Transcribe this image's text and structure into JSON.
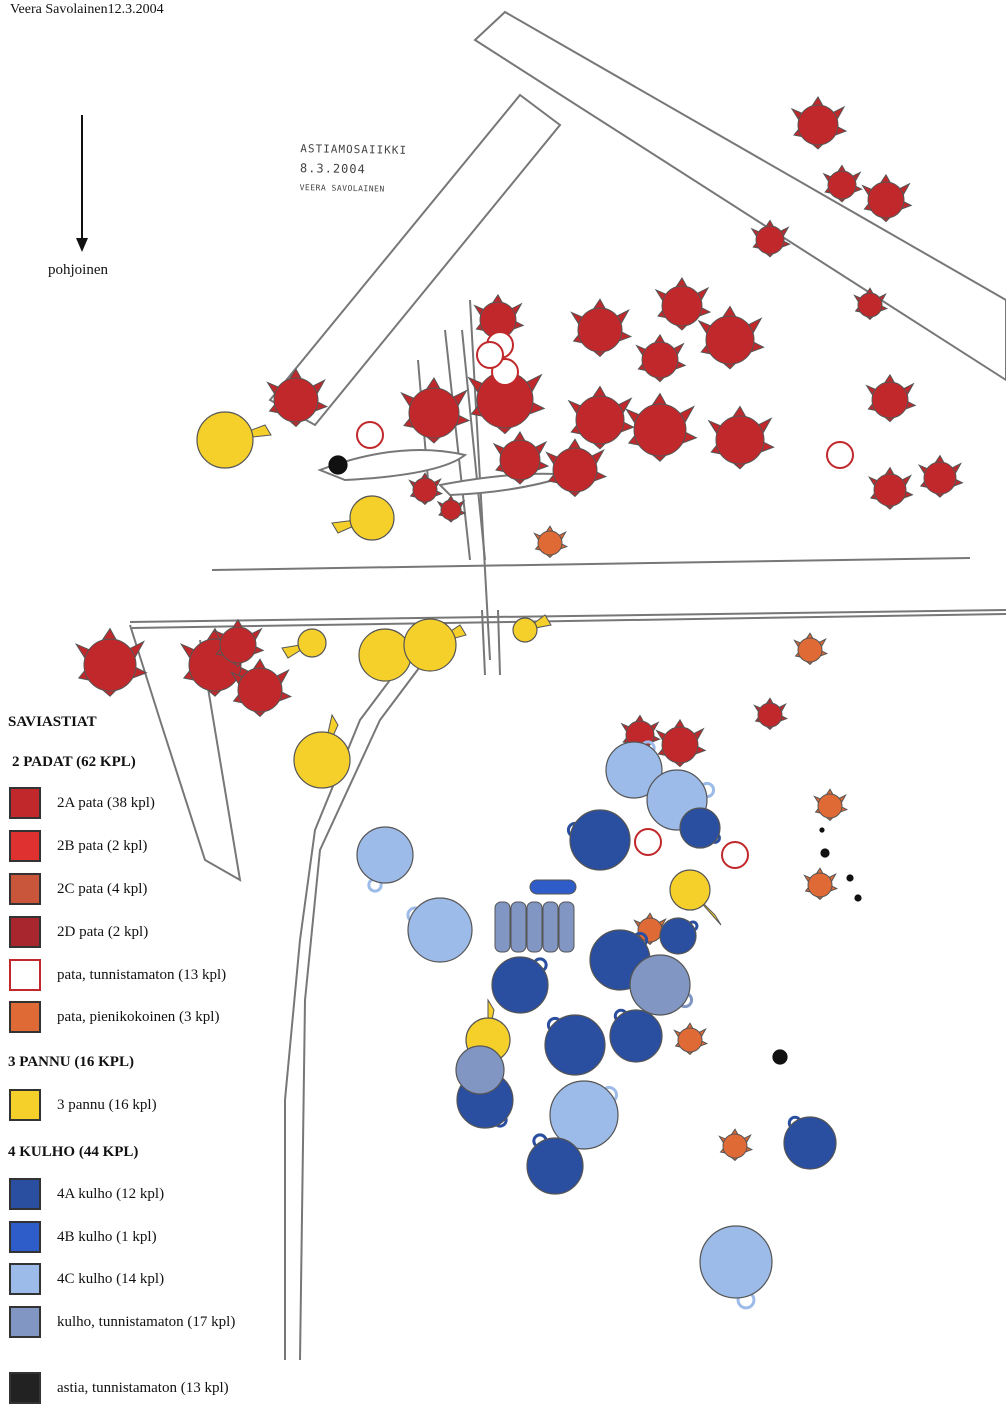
{
  "header": {
    "line2": "Veera Savolainen12.3.2004"
  },
  "north_label": "pohjoinen",
  "handwritten": {
    "line1": "ASTIAMOSAIIKKI",
    "line2": "8.3.2004",
    "line3": "VEERA SAVOLAINEN"
  },
  "legend": {
    "title": "SAVIASTIAT",
    "groups": [
      {
        "heading": "2 PADAT (62 KPL)",
        "items": [
          {
            "label": "2A pata (38 kpl)",
            "color": "#c0282b"
          },
          {
            "label": "2B pata (2 kpl)",
            "color": "#e03131"
          },
          {
            "label": "2C pata (4 kpl)",
            "color": "#c9553a"
          },
          {
            "label": "2D pata (2 kpl)",
            "color": "#a8262e"
          },
          {
            "label": "pata, tunnistamaton (13 kpl)",
            "color": "#ffffff"
          },
          {
            "label": "pata, pienikokoinen (3 kpl)",
            "color": "#e06a36"
          }
        ]
      },
      {
        "heading": "3 PANNU (16 KPL)",
        "items": [
          {
            "label": "3 pannu (16 kpl)",
            "color": "#f5d02a"
          }
        ]
      },
      {
        "heading": "4 KULHO (44 KPL)",
        "items": [
          {
            "label": "4A kulho (12 kpl)",
            "color": "#2a4ea0"
          },
          {
            "label": "4B kulho (1 kpl)",
            "color": "#2e5cc8"
          },
          {
            "label": "4C kulho (14 kpl)",
            "color": "#9dbbe8"
          },
          {
            "label": "kulho, tunnistamaton (17 kpl)",
            "color": "#8196c2"
          }
        ]
      },
      {
        "heading": "",
        "items": [
          {
            "label": "astia, tunnistamaton (13 kpl)",
            "color": "#222222"
          }
        ]
      }
    ]
  },
  "colors": {
    "pata_2a": "#c0282b",
    "pannu": "#f5d02a",
    "kulho_4a": "#2a4ea0",
    "kulho_4c": "#9dbbe8",
    "kulho_unknown": "#8196c2",
    "pata_small": "#e06a36",
    "outline": "#555555"
  }
}
